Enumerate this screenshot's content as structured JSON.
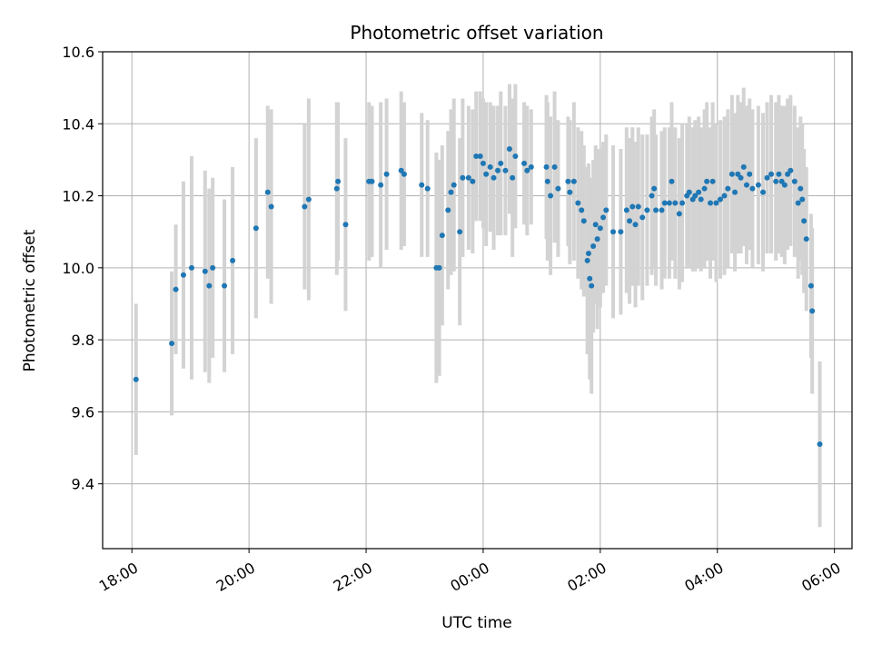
{
  "chart_data": {
    "type": "scatter",
    "title": "Photometric offset variation",
    "xlabel": "UTC time",
    "ylabel": "Photometric offset",
    "xlim": [
      -6.5,
      6.3
    ],
    "ylim": [
      9.22,
      10.6
    ],
    "xticks": [
      {
        "value": -6,
        "label": "18:00"
      },
      {
        "value": -4,
        "label": "20:00"
      },
      {
        "value": -2,
        "label": "22:00"
      },
      {
        "value": 0,
        "label": "00:00"
      },
      {
        "value": 2,
        "label": "02:00"
      },
      {
        "value": 4,
        "label": "04:00"
      },
      {
        "value": 6,
        "label": "06:00"
      }
    ],
    "yticks": [
      {
        "value": 9.4,
        "label": "9.4"
      },
      {
        "value": 9.6,
        "label": "9.6"
      },
      {
        "value": 9.8,
        "label": "9.8"
      },
      {
        "value": 10.0,
        "label": "10.0"
      },
      {
        "value": 10.2,
        "label": "10.2"
      },
      {
        "value": 10.4,
        "label": "10.4"
      },
      {
        "value": 10.6,
        "label": "10.6"
      }
    ],
    "grid": true,
    "colors": {
      "points": "#1f77b4",
      "errorbars": "#d3d3d3",
      "grid": "#b0b0b0"
    },
    "series": [
      {
        "points": [
          [
            -5.93,
            9.69,
            0.21
          ],
          [
            -5.32,
            9.79,
            0.2
          ],
          [
            -5.25,
            9.94,
            0.18
          ],
          [
            -5.12,
            9.98,
            0.26
          ],
          [
            -4.98,
            10.0,
            0.31
          ],
          [
            -4.75,
            9.99,
            0.28
          ],
          [
            -4.68,
            9.95,
            0.27
          ],
          [
            -4.62,
            10.0,
            0.25
          ],
          [
            -4.42,
            9.95,
            0.24
          ],
          [
            -4.28,
            10.02,
            0.26
          ],
          [
            -3.88,
            10.11,
            0.25
          ],
          [
            -3.68,
            10.21,
            0.24
          ],
          [
            -3.62,
            10.17,
            0.27
          ],
          [
            -3.05,
            10.17,
            0.23
          ],
          [
            -2.98,
            10.19,
            0.28
          ],
          [
            -2.5,
            10.22,
            0.24
          ],
          [
            -2.48,
            10.24,
            0.22
          ],
          [
            -2.35,
            10.12,
            0.24
          ],
          [
            -1.95,
            10.24,
            0.22
          ],
          [
            -1.9,
            10.24,
            0.21
          ],
          [
            -1.75,
            10.23,
            0.23
          ],
          [
            -1.65,
            10.26,
            0.21
          ],
          [
            -1.4,
            10.27,
            0.22
          ],
          [
            -1.35,
            10.26,
            0.2
          ],
          [
            -1.05,
            10.23,
            0.2
          ],
          [
            -0.95,
            10.22,
            0.19
          ],
          [
            -0.8,
            10.0,
            0.32
          ],
          [
            -0.75,
            10.0,
            0.3
          ],
          [
            -0.7,
            10.09,
            0.25
          ],
          [
            -0.6,
            10.16,
            0.22
          ],
          [
            -0.55,
            10.21,
            0.23
          ],
          [
            -0.5,
            10.23,
            0.24
          ],
          [
            -0.4,
            10.1,
            0.26
          ],
          [
            -0.35,
            10.25,
            0.22
          ],
          [
            -0.25,
            10.25,
            0.2
          ],
          [
            -0.18,
            10.24,
            0.2
          ],
          [
            -0.12,
            10.31,
            0.18
          ],
          [
            -0.05,
            10.31,
            0.18
          ],
          [
            0.0,
            10.29,
            0.18
          ],
          [
            0.05,
            10.26,
            0.2
          ],
          [
            0.12,
            10.28,
            0.18
          ],
          [
            0.18,
            10.25,
            0.2
          ],
          [
            0.25,
            10.27,
            0.18
          ],
          [
            0.3,
            10.29,
            0.2
          ],
          [
            0.38,
            10.27,
            0.18
          ],
          [
            0.45,
            10.33,
            0.18
          ],
          [
            0.5,
            10.25,
            0.22
          ],
          [
            0.55,
            10.31,
            0.2
          ],
          [
            0.7,
            10.29,
            0.17
          ],
          [
            0.75,
            10.27,
            0.18
          ],
          [
            0.82,
            10.28,
            0.16
          ],
          [
            1.08,
            10.28,
            0.2
          ],
          [
            1.1,
            10.24,
            0.22
          ],
          [
            1.15,
            10.2,
            0.22
          ],
          [
            1.22,
            10.28,
            0.21
          ],
          [
            1.28,
            10.22,
            0.19
          ],
          [
            1.45,
            10.24,
            0.18
          ],
          [
            1.48,
            10.21,
            0.2
          ],
          [
            1.55,
            10.24,
            0.22
          ],
          [
            1.62,
            10.18,
            0.21
          ],
          [
            1.68,
            10.16,
            0.22
          ],
          [
            1.72,
            10.13,
            0.21
          ],
          [
            1.78,
            10.02,
            0.26
          ],
          [
            1.8,
            10.04,
            0.25
          ],
          [
            1.82,
            9.97,
            0.28
          ],
          [
            1.85,
            9.95,
            0.3
          ],
          [
            1.88,
            10.06,
            0.24
          ],
          [
            1.92,
            10.12,
            0.22
          ],
          [
            1.95,
            10.08,
            0.25
          ],
          [
            2.0,
            10.11,
            0.22
          ],
          [
            2.05,
            10.14,
            0.21
          ],
          [
            2.1,
            10.16,
            0.21
          ],
          [
            2.22,
            10.1,
            0.24
          ],
          [
            2.35,
            10.1,
            0.23
          ],
          [
            2.45,
            10.16,
            0.23
          ],
          [
            2.5,
            10.13,
            0.23
          ],
          [
            2.55,
            10.17,
            0.22
          ],
          [
            2.6,
            10.12,
            0.23
          ],
          [
            2.65,
            10.17,
            0.22
          ],
          [
            2.72,
            10.14,
            0.23
          ],
          [
            2.8,
            10.16,
            0.21
          ],
          [
            2.88,
            10.2,
            0.22
          ],
          [
            2.92,
            10.22,
            0.22
          ],
          [
            2.95,
            10.16,
            0.21
          ],
          [
            3.05,
            10.16,
            0.22
          ],
          [
            3.1,
            10.18,
            0.21
          ],
          [
            3.18,
            10.18,
            0.21
          ],
          [
            3.22,
            10.24,
            0.22
          ],
          [
            3.28,
            10.18,
            0.21
          ],
          [
            3.35,
            10.15,
            0.21
          ],
          [
            3.4,
            10.18,
            0.22
          ],
          [
            3.48,
            10.2,
            0.2
          ],
          [
            3.52,
            10.21,
            0.21
          ],
          [
            3.58,
            10.19,
            0.2
          ],
          [
            3.62,
            10.2,
            0.21
          ],
          [
            3.68,
            10.21,
            0.21
          ],
          [
            3.72,
            10.19,
            0.2
          ],
          [
            3.78,
            10.22,
            0.22
          ],
          [
            3.82,
            10.24,
            0.22
          ],
          [
            3.88,
            10.18,
            0.21
          ],
          [
            3.92,
            10.24,
            0.22
          ],
          [
            3.98,
            10.18,
            0.22
          ],
          [
            4.05,
            10.19,
            0.22
          ],
          [
            4.12,
            10.2,
            0.22
          ],
          [
            4.18,
            10.22,
            0.22
          ],
          [
            4.25,
            10.26,
            0.22
          ],
          [
            4.3,
            10.21,
            0.22
          ],
          [
            4.35,
            10.26,
            0.22
          ],
          [
            4.4,
            10.25,
            0.21
          ],
          [
            4.45,
            10.28,
            0.22
          ],
          [
            4.5,
            10.23,
            0.22
          ],
          [
            4.55,
            10.26,
            0.21
          ],
          [
            4.6,
            10.22,
            0.22
          ],
          [
            4.7,
            10.23,
            0.22
          ],
          [
            4.78,
            10.21,
            0.22
          ],
          [
            4.85,
            10.25,
            0.21
          ],
          [
            4.92,
            10.26,
            0.22
          ],
          [
            5.0,
            10.24,
            0.22
          ],
          [
            5.05,
            10.26,
            0.22
          ],
          [
            5.1,
            10.24,
            0.21
          ],
          [
            5.15,
            10.23,
            0.22
          ],
          [
            5.2,
            10.26,
            0.21
          ],
          [
            5.25,
            10.27,
            0.21
          ],
          [
            5.32,
            10.24,
            0.21
          ],
          [
            5.38,
            10.18,
            0.21
          ],
          [
            5.42,
            10.22,
            0.2
          ],
          [
            5.45,
            10.19,
            0.21
          ],
          [
            5.48,
            10.13,
            0.2
          ],
          [
            5.52,
            10.08,
            0.2
          ],
          [
            5.6,
            9.95,
            0.2
          ],
          [
            5.62,
            9.88,
            0.23
          ],
          [
            5.75,
            9.51,
            0.23
          ]
        ]
      }
    ]
  }
}
